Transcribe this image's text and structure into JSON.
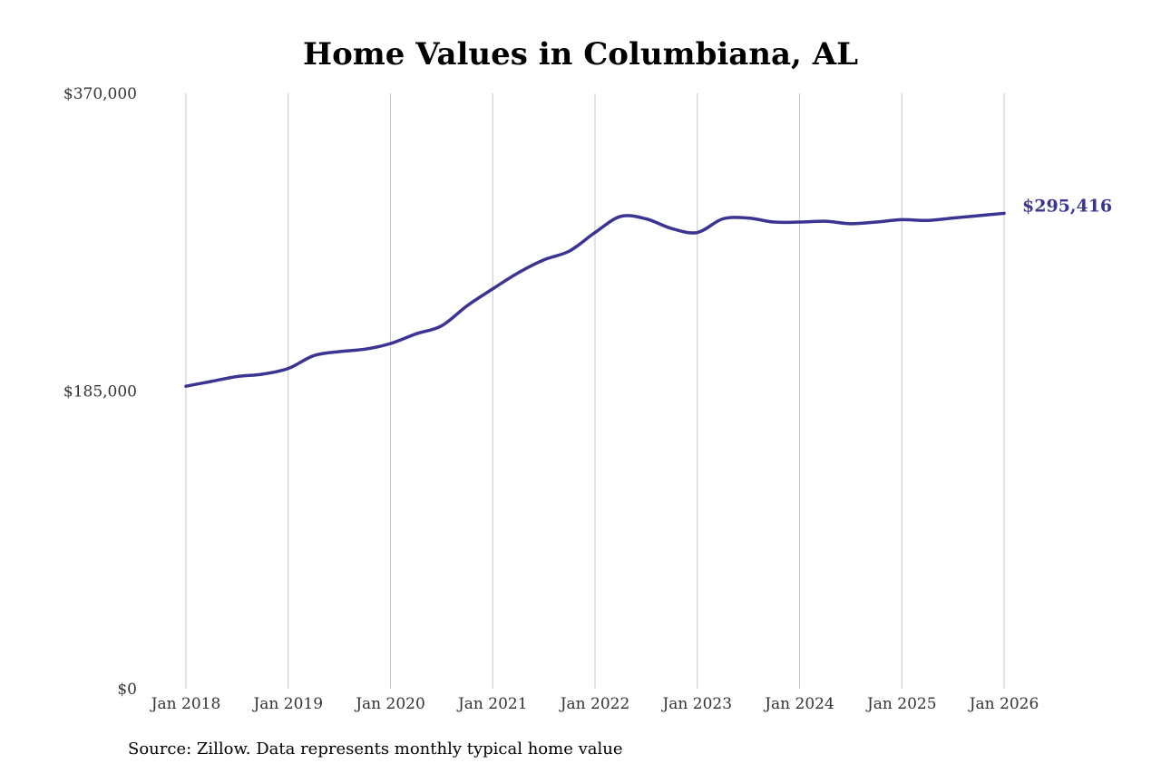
{
  "chart_data": {
    "type": "line",
    "title": "Home Values in Columbiana, AL",
    "xlabel": "",
    "ylabel": "",
    "source": "Source: Zillow. Data represents monthly typical home value",
    "ylim": [
      0,
      370000
    ],
    "xlim": [
      "2018-01",
      "2026-01"
    ],
    "y_ticks": [
      {
        "value": 0,
        "label": "$0"
      },
      {
        "value": 185000,
        "label": "$185,000"
      },
      {
        "value": 370000,
        "label": "$370,000"
      }
    ],
    "x_ticks": [
      {
        "value": "2018-01",
        "label": "Jan 2018"
      },
      {
        "value": "2019-01",
        "label": "Jan 2019"
      },
      {
        "value": "2020-01",
        "label": "Jan 2020"
      },
      {
        "value": "2021-01",
        "label": "Jan 2021"
      },
      {
        "value": "2022-01",
        "label": "Jan 2022"
      },
      {
        "value": "2023-01",
        "label": "Jan 2023"
      },
      {
        "value": "2024-01",
        "label": "Jan 2024"
      },
      {
        "value": "2025-01",
        "label": "Jan 2025"
      },
      {
        "value": "2026-01",
        "label": "Jan 2026"
      }
    ],
    "grid": "vertical",
    "colors": {
      "line": "#3b3493",
      "grid": "#c8c8c8",
      "text": "#333333"
    },
    "end_label": "$295,416",
    "series": [
      {
        "x": [
          "2018-01",
          "2018-04",
          "2018-07",
          "2018-10",
          "2019-01",
          "2019-04",
          "2019-07",
          "2019-10",
          "2020-01",
          "2020-04",
          "2020-07",
          "2020-10",
          "2021-01",
          "2021-04",
          "2021-07",
          "2021-10",
          "2022-01",
          "2022-04",
          "2022-07",
          "2022-10",
          "2023-01",
          "2023-04",
          "2023-07",
          "2023-10",
          "2024-01",
          "2024-04",
          "2024-07",
          "2024-10",
          "2025-01",
          "2025-04",
          "2025-07",
          "2025-10",
          "2026-01"
        ],
        "values": [
          188000,
          191000,
          194000,
          195500,
          199000,
          207000,
          209500,
          211000,
          214500,
          220500,
          225500,
          238000,
          248500,
          258500,
          266500,
          272000,
          283500,
          293500,
          292000,
          286000,
          283500,
          292000,
          292500,
          290000,
          290000,
          290500,
          289000,
          290000,
          291500,
          291000,
          292500,
          294000,
          295416
        ]
      }
    ]
  }
}
